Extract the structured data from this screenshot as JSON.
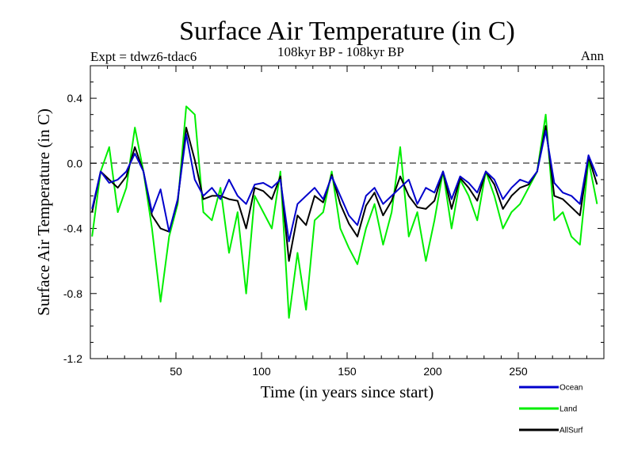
{
  "chart_data": {
    "type": "line",
    "title": "Surface Air Temperature (in C)",
    "subtitle": "108kyr BP - 108kyr BP",
    "experiment_label": "Expt = tdwz6-tdac6",
    "period_label": "Ann",
    "xlabel": "Time (in years since start)",
    "ylabel": "Surface Air Temperature (in C)",
    "xlim": [
      0,
      300
    ],
    "ylim": [
      -1.2,
      0.6
    ],
    "x_ticks": [
      50,
      100,
      150,
      200,
      250
    ],
    "y_ticks": [
      -1.2,
      -0.8,
      -0.4,
      0.0,
      0.4
    ],
    "y_tick_labels": [
      "-1.2",
      "-0.8",
      "-0.4",
      "0.0",
      "0.4"
    ],
    "zero_line": "dashed",
    "grid": false,
    "legend_position": "bottom-right, below plot",
    "series": [
      {
        "name": "Ocean",
        "color": "#0000cc",
        "x": [
          1,
          6,
          11,
          16,
          21,
          26,
          31,
          36,
          41,
          46,
          51,
          56,
          61,
          66,
          71,
          76,
          81,
          86,
          91,
          96,
          101,
          106,
          111,
          116,
          121,
          126,
          131,
          136,
          141,
          146,
          151,
          156,
          161,
          166,
          171,
          176,
          181,
          186,
          191,
          196,
          201,
          206,
          211,
          216,
          221,
          226,
          231,
          236,
          241,
          246,
          251,
          256,
          261,
          266,
          271,
          276,
          281,
          286,
          291,
          296
        ],
        "values": [
          -0.28,
          -0.05,
          -0.12,
          -0.1,
          -0.05,
          0.06,
          -0.05,
          -0.3,
          -0.16,
          -0.42,
          -0.22,
          0.18,
          -0.1,
          -0.2,
          -0.15,
          -0.22,
          -0.1,
          -0.2,
          -0.25,
          -0.13,
          -0.12,
          -0.15,
          -0.1,
          -0.48,
          -0.25,
          -0.2,
          -0.15,
          -0.22,
          -0.08,
          -0.2,
          -0.32,
          -0.38,
          -0.2,
          -0.15,
          -0.25,
          -0.2,
          -0.15,
          -0.1,
          -0.25,
          -0.15,
          -0.18,
          -0.05,
          -0.22,
          -0.08,
          -0.12,
          -0.18,
          -0.05,
          -0.1,
          -0.22,
          -0.15,
          -0.1,
          -0.12,
          -0.05,
          0.2,
          -0.12,
          -0.18,
          -0.2,
          -0.25,
          0.05,
          -0.08
        ]
      },
      {
        "name": "Land",
        "color": "#00ee00",
        "x": [
          1,
          6,
          11,
          16,
          21,
          26,
          31,
          36,
          41,
          46,
          51,
          56,
          61,
          66,
          71,
          76,
          81,
          86,
          91,
          96,
          101,
          106,
          111,
          116,
          121,
          126,
          131,
          136,
          141,
          146,
          151,
          156,
          161,
          166,
          171,
          176,
          181,
          186,
          191,
          196,
          201,
          206,
          211,
          216,
          221,
          226,
          231,
          236,
          241,
          246,
          251,
          256,
          261,
          266,
          271,
          276,
          281,
          286,
          291,
          296
        ],
        "values": [
          -0.45,
          -0.05,
          0.1,
          -0.3,
          -0.15,
          0.22,
          -0.05,
          -0.4,
          -0.85,
          -0.45,
          -0.25,
          0.35,
          0.3,
          -0.3,
          -0.35,
          -0.15,
          -0.55,
          -0.3,
          -0.8,
          -0.2,
          -0.3,
          -0.4,
          -0.05,
          -0.95,
          -0.55,
          -0.9,
          -0.35,
          -0.3,
          -0.05,
          -0.4,
          -0.52,
          -0.62,
          -0.4,
          -0.25,
          -0.5,
          -0.3,
          0.1,
          -0.45,
          -0.3,
          -0.6,
          -0.35,
          -0.05,
          -0.4,
          -0.1,
          -0.2,
          -0.35,
          -0.05,
          -0.2,
          -0.4,
          -0.3,
          -0.25,
          -0.15,
          -0.05,
          0.3,
          -0.35,
          -0.3,
          -0.45,
          -0.5,
          0.02,
          -0.25
        ]
      },
      {
        "name": "AllSurf",
        "color": "#000000",
        "x": [
          1,
          6,
          11,
          16,
          21,
          26,
          31,
          36,
          41,
          46,
          51,
          56,
          61,
          66,
          71,
          76,
          81,
          86,
          91,
          96,
          101,
          106,
          111,
          116,
          121,
          126,
          131,
          136,
          141,
          146,
          151,
          156,
          161,
          166,
          171,
          176,
          181,
          186,
          191,
          196,
          201,
          206,
          211,
          216,
          221,
          226,
          231,
          236,
          241,
          246,
          251,
          256,
          261,
          266,
          271,
          276,
          281,
          286,
          291,
          296
        ],
        "values": [
          -0.3,
          -0.05,
          -0.1,
          -0.15,
          -0.08,
          0.1,
          -0.05,
          -0.32,
          -0.4,
          -0.42,
          -0.23,
          0.22,
          0.02,
          -0.22,
          -0.2,
          -0.2,
          -0.22,
          -0.23,
          -0.4,
          -0.15,
          -0.17,
          -0.22,
          -0.08,
          -0.6,
          -0.32,
          -0.38,
          -0.2,
          -0.24,
          -0.07,
          -0.25,
          -0.37,
          -0.45,
          -0.26,
          -0.18,
          -0.32,
          -0.23,
          -0.08,
          -0.2,
          -0.27,
          -0.28,
          -0.23,
          -0.05,
          -0.28,
          -0.09,
          -0.15,
          -0.23,
          -0.05,
          -0.13,
          -0.28,
          -0.2,
          -0.15,
          -0.13,
          -0.05,
          0.23,
          -0.2,
          -0.22,
          -0.27,
          -0.32,
          0.04,
          -0.13
        ]
      }
    ]
  }
}
